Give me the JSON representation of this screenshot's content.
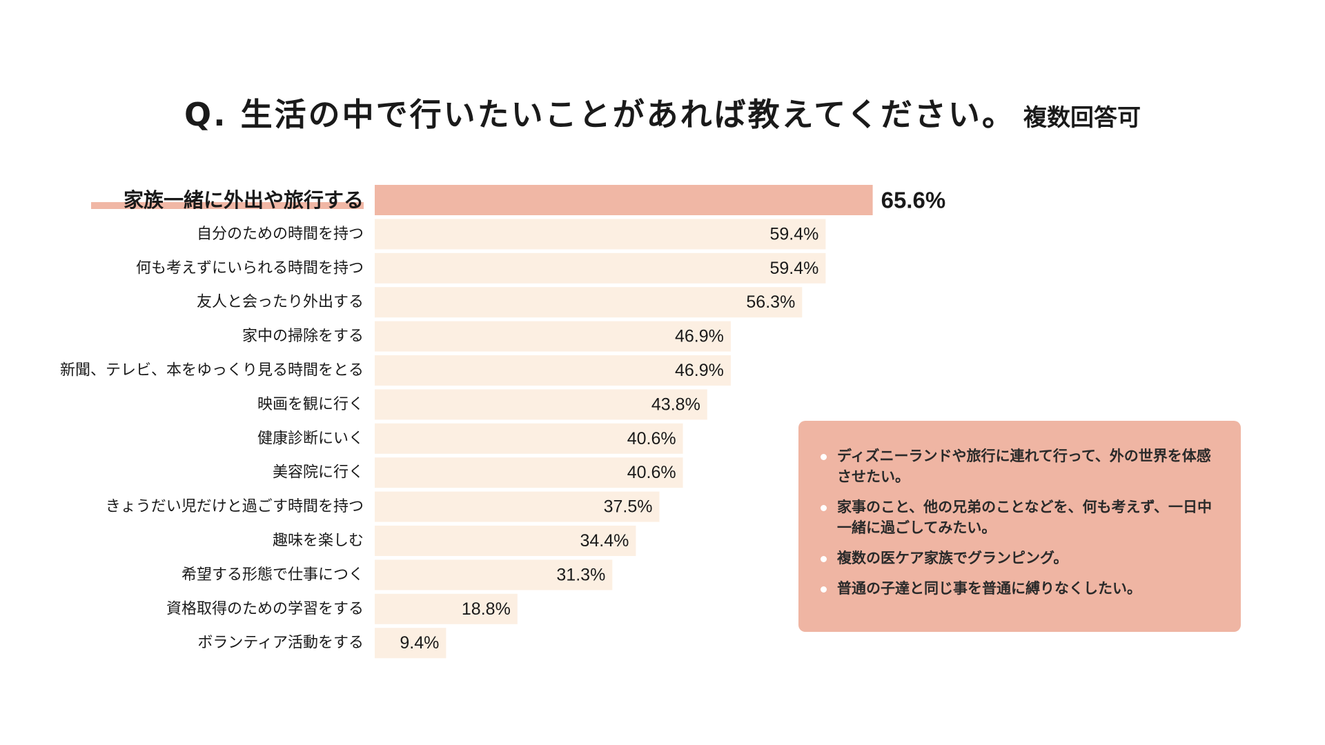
{
  "title": "Q. 生活の中で行いたいことがあれば教えてください。",
  "title_note": "複数回答可",
  "chart_data": {
    "type": "bar",
    "orientation": "horizontal",
    "categories": [
      "家族一緒に外出や旅行する",
      "自分のための時間を持つ",
      "何も考えずにいられる時間を持つ",
      "友人と会ったり外出する",
      "家中の掃除をする",
      "新聞、テレビ、本をゆっくり見る時間をとる",
      "映画を観に行く",
      "健康診断にいく",
      "美容院に行く",
      "きょうだい児だけと過ごす時間を持つ",
      "趣味を楽しむ",
      "希望する形態で仕事につく",
      "資格取得のための学習をする",
      "ボランティア活動をする"
    ],
    "values": [
      65.6,
      59.4,
      59.4,
      56.3,
      46.9,
      46.9,
      43.8,
      40.6,
      40.6,
      37.5,
      34.4,
      31.3,
      18.8,
      9.4
    ],
    "value_labels": [
      "65.6%",
      "59.4%",
      "59.4%",
      "56.3%",
      "46.9%",
      "46.9%",
      "43.8%",
      "40.6%",
      "40.6%",
      "37.5%",
      "34.4%",
      "31.3%",
      "18.8%",
      "9.4%"
    ],
    "highlight_index": 0,
    "colors": {
      "highlight": "#f0b7a5",
      "bar": "#fcefe2",
      "underline": "#f0b7a5"
    },
    "xlim": [
      0,
      100
    ],
    "grid": false
  },
  "callout": {
    "background": "#efb5a3",
    "items": [
      "ディズニーランドや旅行に連れて行って、外の世界を体感させたい。",
      "家事のこと、他の兄弟のことなどを、何も考えず、一日中一緒に過ごしてみたい。",
      "複数の医ケア家族でグランピング。",
      "普通の子達と同じ事を普通に縛りなくしたい。"
    ]
  }
}
